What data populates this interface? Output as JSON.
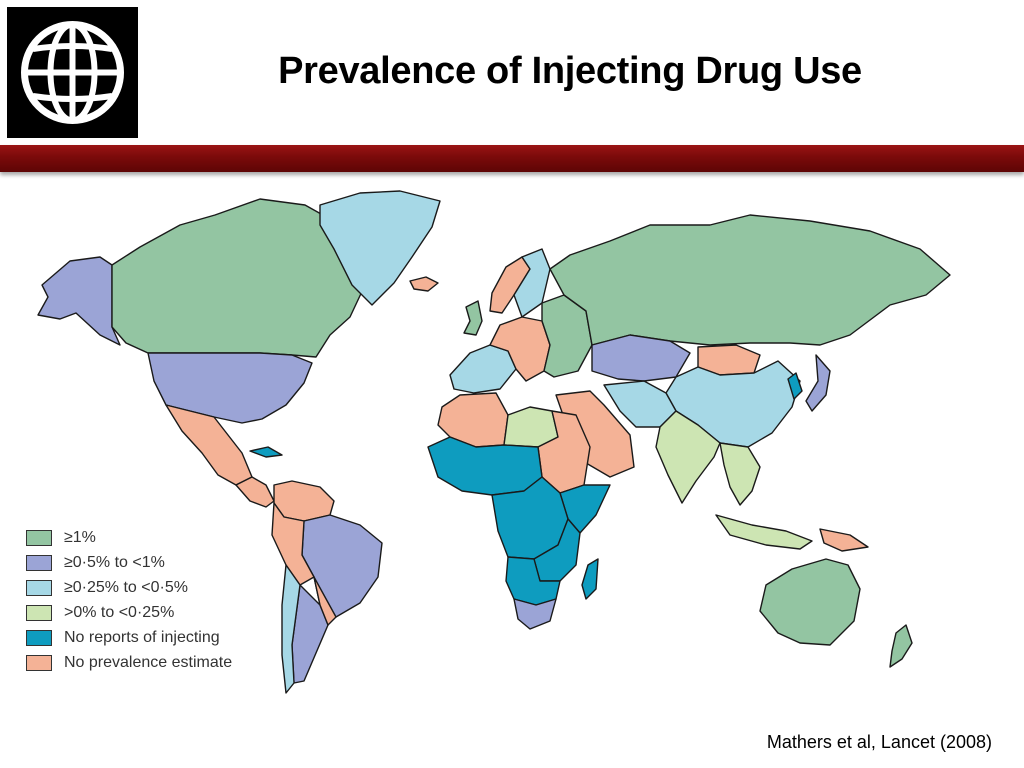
{
  "slide": {
    "title": "Prevalence of Injecting Drug Use",
    "citation": "Mathers et al, Lancet (2008)",
    "logo_icon": "globe-icon"
  },
  "colors": {
    "high": "#93c5a2",
    "mid": "#9ba4d6",
    "low_mid": "#a6d8e6",
    "low": "#cde5b3",
    "none": "#0e9cbf",
    "no_estimate": "#f4b296",
    "ocean": "#ffffff",
    "title_bar": "#7a0a0a"
  },
  "legend": {
    "items": [
      {
        "label": "≥1%",
        "color": "#93c5a2"
      },
      {
        "label": "≥0·5% to <1%",
        "color": "#9ba4d6"
      },
      {
        "label": "≥0·25% to <0·5%",
        "color": "#a6d8e6"
      },
      {
        "label": ">0% to <0·25%",
        "color": "#cde5b3"
      },
      {
        "label": "No reports of injecting",
        "color": "#0e9cbf"
      },
      {
        "label": "No prevalence estimate",
        "color": "#f4b296"
      }
    ]
  },
  "regions": [
    {
      "name": "canada",
      "category": "high"
    },
    {
      "name": "alaska",
      "category": "mid"
    },
    {
      "name": "usa",
      "category": "mid"
    },
    {
      "name": "greenland",
      "category": "low_mid"
    },
    {
      "name": "mexico",
      "category": "no_estimate"
    },
    {
      "name": "central-america",
      "category": "no_estimate"
    },
    {
      "name": "cuba",
      "category": "none"
    },
    {
      "name": "colombia-venezuela",
      "category": "no_estimate"
    },
    {
      "name": "brazil",
      "category": "mid"
    },
    {
      "name": "peru-bolivia",
      "category": "no_estimate"
    },
    {
      "name": "argentina",
      "category": "mid"
    },
    {
      "name": "chile",
      "category": "low_mid"
    },
    {
      "name": "uruguay-paraguay",
      "category": "no_estimate"
    },
    {
      "name": "scandinavia",
      "category": "no_estimate"
    },
    {
      "name": "finland-sweden",
      "category": "low_mid"
    },
    {
      "name": "iceland",
      "category": "no_estimate"
    },
    {
      "name": "uk",
      "category": "high"
    },
    {
      "name": "western-europe",
      "category": "low_mid"
    },
    {
      "name": "central-europe",
      "category": "no_estimate"
    },
    {
      "name": "eastern-europe",
      "category": "high"
    },
    {
      "name": "russia",
      "category": "high"
    },
    {
      "name": "kazakhstan",
      "category": "mid"
    },
    {
      "name": "mongolia",
      "category": "no_estimate"
    },
    {
      "name": "china",
      "category": "low_mid"
    },
    {
      "name": "korea",
      "category": "none"
    },
    {
      "name": "japan",
      "category": "mid"
    },
    {
      "name": "middle-east",
      "category": "no_estimate"
    },
    {
      "name": "iran",
      "category": "low_mid"
    },
    {
      "name": "india",
      "category": "low"
    },
    {
      "name": "southeast-asia",
      "category": "low"
    },
    {
      "name": "indonesia",
      "category": "low"
    },
    {
      "name": "new-guinea",
      "category": "no_estimate"
    },
    {
      "name": "north-africa",
      "category": "no_estimate"
    },
    {
      "name": "libya",
      "category": "low"
    },
    {
      "name": "west-africa",
      "category": "none"
    },
    {
      "name": "central-africa",
      "category": "none"
    },
    {
      "name": "east-africa",
      "category": "none"
    },
    {
      "name": "horn-of-africa",
      "category": "none"
    },
    {
      "name": "southern-africa",
      "category": "none"
    },
    {
      "name": "south-africa",
      "category": "mid"
    },
    {
      "name": "madagascar",
      "category": "none"
    },
    {
      "name": "australia",
      "category": "high"
    },
    {
      "name": "new-zealand",
      "category": "high"
    }
  ]
}
